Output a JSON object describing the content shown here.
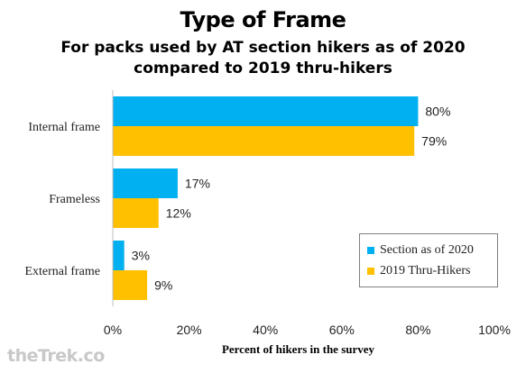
{
  "chart_data": {
    "type": "bar",
    "orientation": "horizontal",
    "title": "Type of Frame",
    "subtitle": "For packs used by AT section hikers as of 2020 compared to 2019 thru-hikers",
    "categories": [
      "Internal frame",
      "Frameless",
      "External frame"
    ],
    "series": [
      {
        "name": "Section as of 2020",
        "color": "#00b0f0",
        "values": [
          80,
          17,
          3
        ],
        "labels": [
          "80%",
          "17%",
          "3%"
        ]
      },
      {
        "name": "2019 Thru-Hikers",
        "color": "#ffc000",
        "values": [
          79,
          12,
          9
        ],
        "labels": [
          "79%",
          "12%",
          "9%"
        ]
      }
    ],
    "xlabel": "Percent of hikers in the survey",
    "ylabel": "",
    "xlim": [
      0,
      100
    ],
    "ticks": [
      0,
      20,
      40,
      60,
      80,
      100
    ],
    "tick_labels": [
      "0%",
      "20%",
      "40%",
      "60%",
      "80%",
      "100%"
    ],
    "grid": false,
    "legend_position": "bottom-right"
  },
  "watermark": "theTrek.co"
}
